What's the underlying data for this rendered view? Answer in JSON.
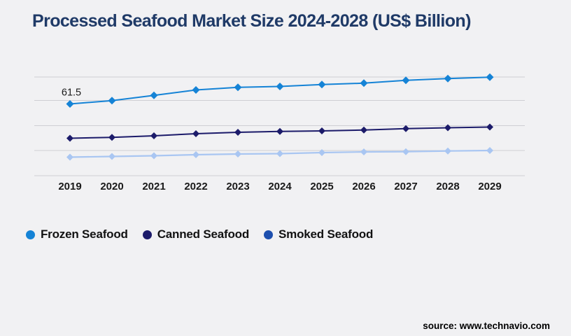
{
  "title": "Processed Seafood Market Size 2024-2028 (US$ Billion)",
  "footer": {
    "source": "source: www.technavio.com"
  },
  "colors": {
    "background": "#f1f1f3",
    "title": "#1f3a67",
    "gridline": "#cfcfd3",
    "tick_label": "#1a1a1a",
    "annotation": "#1a1a1a",
    "source_text": "#000000"
  },
  "chart_data": {
    "type": "line",
    "title": "Processed Seafood Market Size 2024-2028 (US$ Billion)",
    "xlabel": "",
    "ylabel": "",
    "categories": [
      "2019",
      "2020",
      "2021",
      "2022",
      "2023",
      "2024",
      "2025",
      "2026",
      "2027",
      "2028",
      "2029"
    ],
    "series": [
      {
        "name": "Frozen Seafood",
        "color": "#1583d6",
        "legend_color": "#1583d6",
        "values": [
          61.5,
          64.3,
          68.9,
          73.5,
          75.7,
          76.5,
          78.1,
          79.3,
          81.7,
          83.3,
          84.5
        ]
      },
      {
        "name": "Canned Seafood",
        "color": "#1c1b6a",
        "legend_color": "#1c1b6a",
        "values": [
          32.1,
          32.9,
          34.2,
          36.0,
          37.2,
          37.9,
          38.4,
          39.2,
          40.4,
          41.1,
          41.7
        ]
      },
      {
        "name": "Smoked Seafood",
        "color": "#a9c6f2",
        "legend_color": "#1d4fae",
        "values": [
          15.9,
          16.5,
          17.1,
          18.0,
          18.6,
          18.9,
          19.8,
          20.4,
          20.6,
          21.2,
          21.6
        ]
      }
    ],
    "annotations": [
      {
        "series": "Frozen Seafood",
        "category": "2019",
        "text": "61.5"
      }
    ],
    "marker": "diamond",
    "ylim": [
      0,
      85
    ],
    "y_axis_labels_visible": false,
    "gridlines": "horizontal",
    "legend_position": "bottom-left"
  }
}
